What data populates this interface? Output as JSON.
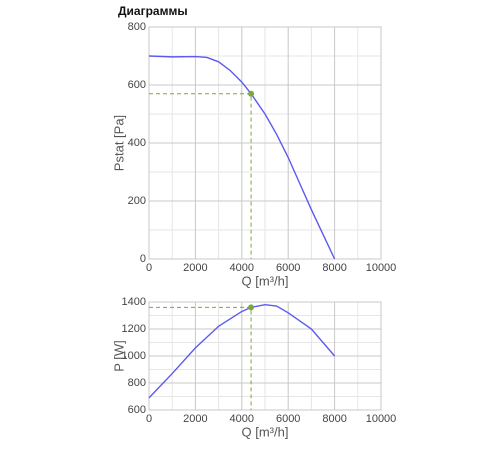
{
  "header": {
    "title": "Диаграммы"
  },
  "chart_data": [
    {
      "type": "line",
      "xlabel": "Q [m³/h]",
      "ylabel": "Pstat [Pa]",
      "x": [
        0,
        1000,
        2000,
        2500,
        3000,
        3500,
        4000,
        4400,
        5000,
        5500,
        6000,
        6500,
        7000,
        7500,
        8000
      ],
      "values": [
        700,
        697,
        698,
        695,
        680,
        650,
        610,
        570,
        500,
        430,
        350,
        260,
        170,
        85,
        0
      ],
      "color": "#5b5bf0",
      "point": {
        "x": 4400,
        "y": 570,
        "color": "#7aa83c"
      },
      "xlim": [
        0,
        10000
      ],
      "xticks": [
        0,
        2000,
        4000,
        6000,
        8000,
        10000
      ],
      "ylim": [
        0,
        800
      ],
      "yticks": [
        0,
        200,
        400,
        600,
        800
      ],
      "grid": true
    },
    {
      "type": "line",
      "xlabel": "Q [m³/h]",
      "ylabel": "P [W]",
      "x": [
        0,
        1000,
        2000,
        3000,
        4000,
        4400,
        5000,
        5500,
        6000,
        7000,
        8000
      ],
      "values": [
        690,
        870,
        1060,
        1220,
        1330,
        1360,
        1380,
        1370,
        1320,
        1200,
        1000
      ],
      "color": "#5b5bf0",
      "point": {
        "x": 4400,
        "y": 1360,
        "color": "#7aa83c"
      },
      "xlim": [
        0,
        10000
      ],
      "xticks": [
        0,
        2000,
        4000,
        6000,
        8000,
        10000
      ],
      "ylim": [
        600,
        1400
      ],
      "yticks": [
        600,
        800,
        1000,
        1200,
        1400
      ],
      "grid": true
    }
  ]
}
